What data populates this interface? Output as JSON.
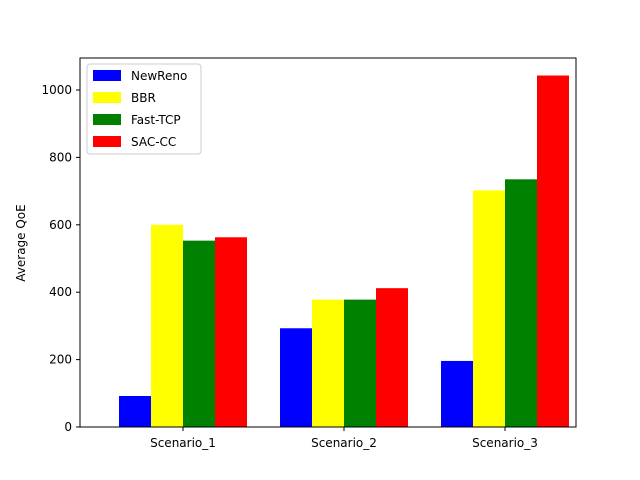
{
  "chart_data": {
    "type": "bar",
    "ylabel": "Average QoE",
    "categories": [
      "Scenario_1",
      "Scenario_2",
      "Scenario_3"
    ],
    "series": [
      {
        "name": "NewReno",
        "color": "#0000ff",
        "values": [
          92,
          293,
          196
        ]
      },
      {
        "name": "BBR",
        "color": "#ffff00",
        "values": [
          600,
          378,
          702
        ]
      },
      {
        "name": "Fast-TCP",
        "color": "#008000",
        "values": [
          553,
          378,
          735
        ]
      },
      {
        "name": "SAC-CC",
        "color": "#ff0000",
        "values": [
          563,
          412,
          1043
        ]
      }
    ],
    "ylim": [
      0,
      1095
    ],
    "yticks": [
      0,
      200,
      400,
      600,
      800,
      1000
    ],
    "legend": "top-left",
    "grid": false
  }
}
